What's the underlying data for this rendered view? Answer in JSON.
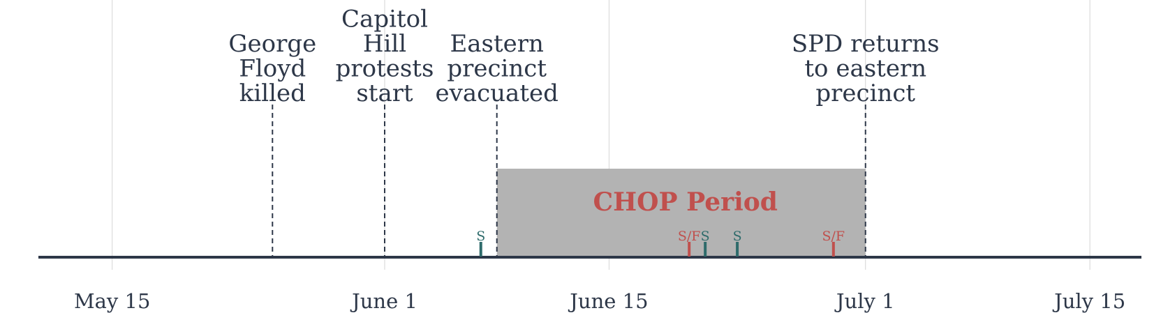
{
  "chart_data": {
    "type": "timeline",
    "x_domain": [
      "2020-05-08",
      "2020-07-19"
    ],
    "ticks": [
      {
        "date": "2020-05-15",
        "label": "May 15"
      },
      {
        "date": "2020-06-01",
        "label": "June  1"
      },
      {
        "date": "2020-06-15",
        "label": "June 15"
      },
      {
        "date": "2020-07-01",
        "label": "July  1"
      },
      {
        "date": "2020-07-15",
        "label": "July 15"
      }
    ],
    "events": [
      {
        "date": "2020-05-25",
        "label": [
          "George",
          "Floyd",
          "killed"
        ]
      },
      {
        "date": "2020-06-01",
        "label": [
          "Capitol",
          "Hill",
          "protests",
          "start"
        ]
      },
      {
        "date": "2020-06-08",
        "label": [
          "Eastern",
          "precinct",
          "evacuated"
        ]
      },
      {
        "date": "2020-07-01",
        "label": [
          "SPD returns",
          "to eastern",
          "precinct"
        ]
      }
    ],
    "period": {
      "start": "2020-06-08",
      "end": "2020-07-01",
      "label": "CHOP Period"
    },
    "markers": [
      {
        "date": "2020-06-07",
        "label": "S",
        "kind": "S"
      },
      {
        "date": "2020-06-20",
        "label": "S/F",
        "kind": "S/F"
      },
      {
        "date": "2020-06-21",
        "label": "S",
        "kind": "S"
      },
      {
        "date": "2020-06-23",
        "label": "S",
        "kind": "S"
      },
      {
        "date": "2020-06-29",
        "label": "S/F",
        "kind": "S/F"
      }
    ],
    "colors": {
      "axis": "#2d3748",
      "grid": "#d4d4d4",
      "period_fill": "#b3b3b3",
      "period_label": "#c0504d",
      "s_marker": "#2e6b6b",
      "sf_marker": "#c0504d",
      "text": "#2d3748"
    }
  }
}
